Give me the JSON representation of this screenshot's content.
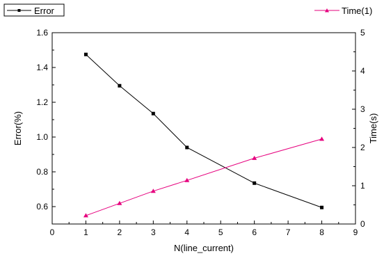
{
  "chart_data": {
    "type": "line",
    "xlabel": "N(line_current)",
    "ylabel": "Error(%)",
    "y2label": "Time(s)",
    "xlim": [
      0,
      9
    ],
    "ylim": [
      0.5,
      1.6
    ],
    "y2lim": [
      0,
      5
    ],
    "x_ticks": [
      0,
      1,
      2,
      3,
      4,
      5,
      6,
      7,
      8,
      9
    ],
    "y_ticks": [
      0.6,
      0.8,
      1.0,
      1.2,
      1.4,
      1.6
    ],
    "y_tick_labels": [
      "0.6",
      "0.8",
      "1.0",
      "1.2",
      "1.4",
      "1.6"
    ],
    "y2_ticks": [
      0,
      1,
      2,
      3,
      4,
      5
    ],
    "grid": false,
    "series": [
      {
        "name": "Error",
        "axis": "left",
        "color": "#000000",
        "marker": "square",
        "x": [
          1,
          2,
          3,
          4,
          6,
          8
        ],
        "values": [
          1.475,
          1.295,
          1.135,
          0.94,
          0.735,
          0.595
        ]
      },
      {
        "name": "Time(1)",
        "axis": "right",
        "color": "#e6007e",
        "marker": "triangle",
        "x": [
          1,
          2,
          3,
          4,
          6,
          8
        ],
        "values": [
          0.22,
          0.54,
          0.86,
          1.14,
          1.72,
          2.22
        ]
      }
    ]
  }
}
